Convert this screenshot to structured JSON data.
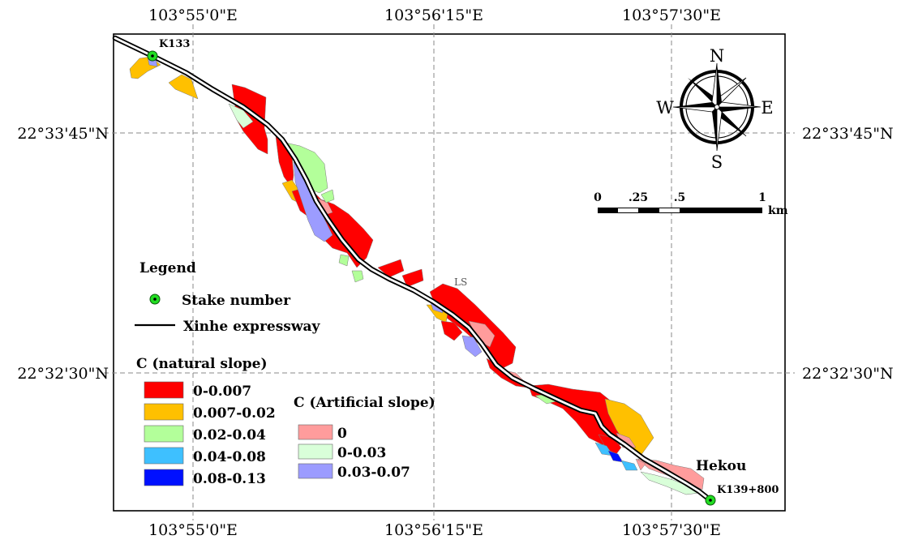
{
  "coordinates": {
    "top": [
      "103°55'0\"E",
      "103°56'15\"E",
      "103°57'30\"E"
    ],
    "bottom": [
      "103°55'0\"E",
      "103°56'15\"E",
      "103°57'30\"E"
    ],
    "left": [
      "22°33'45\"N",
      "22°32'30\"N"
    ],
    "right": [
      "22°33'45\"N",
      "22°32'30\"N"
    ]
  },
  "compass": {
    "north": "N",
    "south": "S",
    "east": "E",
    "west": "W",
    "icon": "compass-rose-icon"
  },
  "scale_bar": {
    "ticks": [
      "0",
      ".25",
      ".5",
      "1"
    ],
    "unit": "km"
  },
  "labels": {
    "start_stake": "K133",
    "end_stake": "K139+800",
    "town": "Hekou",
    "area_code": "LS"
  },
  "legend": {
    "title": "Legend",
    "stake_label": "Stake number",
    "road_label": "Xinhe expressway",
    "natural_title": "C (natural slope)",
    "natural_items": [
      {
        "label": "0-0.007",
        "color": "#ff0000"
      },
      {
        "label": "0.007-0.02",
        "color": "#ffc000"
      },
      {
        "label": "0.02-0.04",
        "color": "#b3ff9a"
      },
      {
        "label": "0.04-0.08",
        "color": "#3ec0ff"
      },
      {
        "label": "0.08-0.13",
        "color": "#0010ff"
      }
    ],
    "artificial_title": "C (Artificial slope)",
    "artificial_items": [
      {
        "label": "0",
        "color": "#ff9c9c"
      },
      {
        "label": "0-0.03",
        "color": "#d9ffd9"
      },
      {
        "label": "0.03-0.07",
        "color": "#9c9cff"
      }
    ]
  },
  "colors": {
    "stake_marker": "#22dd22",
    "graticule": "#888888",
    "road": "#000000"
  }
}
